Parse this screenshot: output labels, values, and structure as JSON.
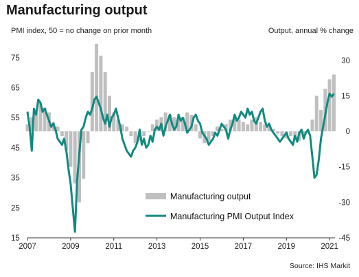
{
  "title": "Manufacturing output",
  "left_axis_label": "PMI index, 50 = no change on prior month",
  "right_axis_label": "Output, annual % change",
  "source": "Source: IHS Markit",
  "colors": {
    "pmi_line": "#118a80",
    "output_bar": "#bfbfbf"
  },
  "chart_data": {
    "type": "bar+line",
    "x_ticks": [
      "2007",
      "2009",
      "2011",
      "2013",
      "2015",
      "2017",
      "2019",
      "2021"
    ],
    "x_range": [
      2007.0,
      2021.25
    ],
    "left_axis": {
      "label": "PMI index, 50 = no change on prior month",
      "ticks": [
        15,
        25,
        35,
        45,
        55,
        65,
        75
      ],
      "range": [
        15,
        80
      ]
    },
    "right_axis": {
      "label": "Output, annual % change",
      "ticks": [
        -45,
        -30,
        -15,
        0,
        15,
        30
      ],
      "range": [
        -45,
        37.5
      ]
    },
    "legend": {
      "placement": "bottom-right",
      "entries": [
        "Manufacturing output",
        "Manufacturing PMI Output Index"
      ]
    },
    "series": [
      {
        "name": "Manufacturing output",
        "kind": "bar",
        "axis": "right",
        "x": [
          2007.0,
          2007.2,
          2007.4,
          2007.6,
          2007.8,
          2008.0,
          2008.2,
          2008.4,
          2008.6,
          2008.8,
          2009.0,
          2009.2,
          2009.4,
          2009.6,
          2009.8,
          2010.0,
          2010.2,
          2010.4,
          2010.6,
          2010.8,
          2011.0,
          2011.2,
          2011.4,
          2011.6,
          2011.8,
          2012.0,
          2012.2,
          2012.4,
          2012.6,
          2012.8,
          2013.0,
          2013.2,
          2013.4,
          2013.6,
          2013.8,
          2014.0,
          2014.2,
          2014.4,
          2014.6,
          2014.8,
          2015.0,
          2015.2,
          2015.4,
          2015.6,
          2015.8,
          2016.0,
          2016.2,
          2016.4,
          2016.6,
          2016.8,
          2017.0,
          2017.2,
          2017.4,
          2017.6,
          2017.8,
          2018.0,
          2018.2,
          2018.4,
          2018.6,
          2018.8,
          2019.0,
          2019.2,
          2019.4,
          2019.6,
          2019.8,
          2020.0,
          2020.2,
          2020.4,
          2020.6,
          2020.8,
          2021.0,
          2021.2
        ],
        "values": [
          3,
          6,
          8,
          12,
          10,
          8,
          4,
          2,
          -2,
          -8,
          -15,
          -22,
          -30,
          -20,
          -5,
          25,
          37,
          32,
          25,
          15,
          8,
          5,
          3,
          2,
          -2,
          -5,
          -4,
          -2,
          0,
          3,
          5,
          6,
          8,
          7,
          6,
          5,
          6,
          8,
          7,
          3,
          -3,
          -5,
          -4,
          -2,
          2,
          1,
          3,
          5,
          6,
          5,
          4,
          3,
          5,
          6,
          4,
          3,
          2,
          1,
          -1,
          -2,
          -3,
          -2,
          -3,
          -4,
          -2,
          0,
          5,
          15,
          9,
          18,
          22,
          24
        ]
      },
      {
        "name": "Manufacturing PMI Output Index",
        "kind": "line",
        "axis": "left",
        "x": [
          2007.0,
          2007.1,
          2007.2,
          2007.3,
          2007.4,
          2007.5,
          2007.6,
          2007.7,
          2007.8,
          2007.9,
          2008.0,
          2008.1,
          2008.2,
          2008.3,
          2008.4,
          2008.5,
          2008.6,
          2008.7,
          2008.8,
          2008.9,
          2009.0,
          2009.1,
          2009.2,
          2009.3,
          2009.4,
          2009.5,
          2009.6,
          2009.7,
          2009.8,
          2009.9,
          2010.0,
          2010.1,
          2010.2,
          2010.3,
          2010.4,
          2010.5,
          2010.6,
          2010.7,
          2010.8,
          2010.9,
          2011.0,
          2011.1,
          2011.2,
          2011.3,
          2011.4,
          2011.5,
          2011.6,
          2011.7,
          2011.8,
          2011.9,
          2012.0,
          2012.1,
          2012.2,
          2012.3,
          2012.4,
          2012.5,
          2012.6,
          2012.7,
          2012.8,
          2012.9,
          2013.0,
          2013.1,
          2013.2,
          2013.3,
          2013.4,
          2013.5,
          2013.6,
          2013.7,
          2013.8,
          2013.9,
          2014.0,
          2014.1,
          2014.2,
          2014.3,
          2014.4,
          2014.5,
          2014.6,
          2014.7,
          2014.8,
          2014.9,
          2015.0,
          2015.1,
          2015.2,
          2015.3,
          2015.4,
          2015.5,
          2015.6,
          2015.7,
          2015.8,
          2015.9,
          2016.0,
          2016.1,
          2016.2,
          2016.3,
          2016.4,
          2016.5,
          2016.6,
          2016.7,
          2016.8,
          2016.9,
          2017.0,
          2017.1,
          2017.2,
          2017.3,
          2017.4,
          2017.5,
          2017.6,
          2017.7,
          2017.8,
          2017.9,
          2018.0,
          2018.1,
          2018.2,
          2018.3,
          2018.4,
          2018.5,
          2018.6,
          2018.7,
          2018.8,
          2018.9,
          2019.0,
          2019.1,
          2019.2,
          2019.3,
          2019.4,
          2019.5,
          2019.6,
          2019.7,
          2019.8,
          2019.9,
          2020.0,
          2020.1,
          2020.2,
          2020.3,
          2020.4,
          2020.5,
          2020.6,
          2020.7,
          2020.8,
          2020.9,
          2021.0,
          2021.1,
          2021.2
        ],
        "values": [
          57,
          52,
          44,
          58,
          56,
          61,
          60,
          57,
          58,
          56,
          54,
          52,
          53,
          51,
          48,
          47,
          46,
          48,
          44,
          38,
          33,
          25,
          17,
          34,
          43,
          51,
          52,
          55,
          57,
          56,
          58,
          61,
          62,
          60,
          58,
          55,
          53,
          56,
          52,
          55,
          56,
          58,
          55,
          52,
          48,
          46,
          44,
          43,
          42,
          44,
          45,
          47,
          51,
          46,
          48,
          45,
          46,
          49,
          47,
          51,
          52,
          51,
          53,
          49,
          52,
          54,
          56,
          53,
          51,
          52,
          56,
          54,
          55,
          53,
          50,
          51,
          52,
          55,
          56,
          54,
          53,
          50,
          49,
          48,
          46,
          47,
          48,
          50,
          49,
          51,
          53,
          52,
          51,
          48,
          51,
          53,
          56,
          54,
          55,
          57,
          56,
          55,
          58,
          56,
          57,
          54,
          53,
          55,
          57,
          58,
          54,
          52,
          53,
          51,
          50,
          49,
          48,
          47,
          48,
          49,
          50,
          48,
          47,
          46,
          49,
          47,
          50,
          51,
          48,
          50,
          51,
          49,
          42,
          35,
          36,
          41,
          48,
          52,
          56,
          60,
          63,
          62,
          63
        ]
      }
    ]
  }
}
